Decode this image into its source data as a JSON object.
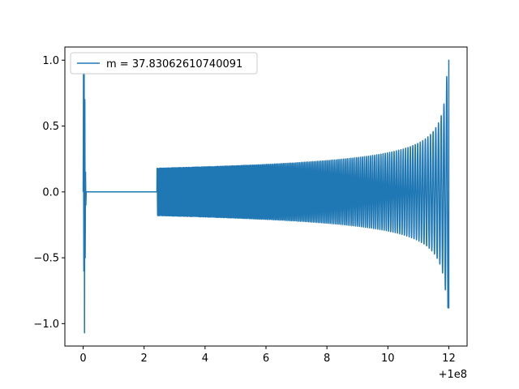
{
  "chart_data": {
    "type": "line",
    "title": "",
    "xlabel": "",
    "ylabel": "",
    "x_offset_label": "+1e8",
    "xlim": [
      -0.6,
      12.6
    ],
    "ylim": [
      -1.17,
      1.1
    ],
    "grid": false,
    "legend_position": "top-left",
    "line_color": "#1f77b4",
    "x_ticks": [
      {
        "value": 0,
        "label": "0"
      },
      {
        "value": 2,
        "label": "2"
      },
      {
        "value": 4,
        "label": "4"
      },
      {
        "value": 6,
        "label": "6"
      },
      {
        "value": 8,
        "label": "8"
      },
      {
        "value": 10,
        "label": "10"
      },
      {
        "value": 12,
        "label": "12"
      }
    ],
    "y_ticks": [
      {
        "value": 1.0,
        "label": "1.0"
      },
      {
        "value": 0.5,
        "label": "0.5"
      },
      {
        "value": 0.0,
        "label": "0.0"
      },
      {
        "value": -0.5,
        "label": "−0.5"
      },
      {
        "value": -1.0,
        "label": "−1.0"
      }
    ],
    "series": [
      {
        "name": "m = 37.83062610740091",
        "segments": [
          {
            "kind": "burst",
            "x_start": 0.0,
            "x_end": 0.1,
            "amplitude_max": 1.0,
            "min_value": -1.07
          },
          {
            "kind": "flat",
            "x_start": 0.1,
            "x_end": 2.42,
            "value": 0.0
          },
          {
            "kind": "chirp",
            "x_start": 2.42,
            "x_end": 12.0,
            "start_amplitude": 0.18,
            "end_amplitude": 1.0,
            "end_min": -0.88,
            "cycles": 190
          }
        ]
      }
    ]
  }
}
